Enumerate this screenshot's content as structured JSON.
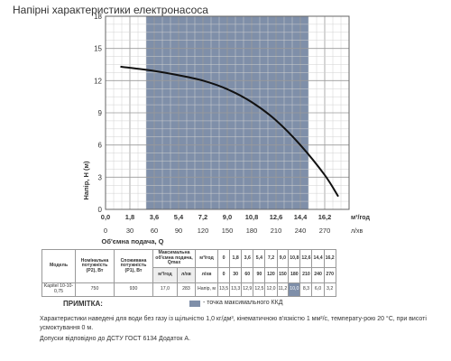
{
  "page": {
    "title": "Напірні характеристики електронасоса",
    "note_label": "ПРИМІТКА:",
    "note_text": "- точка максимального ККД",
    "footnote1": "Характеристики наведені для води без газу із щільністю 1,0 кг/дм³, кінематичною в'язкістю 1 мм²/с, температу-рою 20 °C, при висоті усмоктування 0 м.",
    "footnote2": "Допуски відповідно до ДСТУ ГОСТ 6134 Додаток А."
  },
  "chart_data": {
    "type": "line",
    "title": "",
    "ylabel": "Напір, Н (м)",
    "xlabel": "Об'ємна подача, Q",
    "x_unit_top": "м³/год",
    "x_unit_bottom": "л/хв",
    "xlim": [
      0,
      18
    ],
    "ylim": [
      0,
      18
    ],
    "x_ticks": [
      "0,0",
      "1,8",
      "3,6",
      "5,4",
      "7,2",
      "9,0",
      "10,8",
      "12,6",
      "14,4",
      "16,2"
    ],
    "x_ticks_lmin": [
      "0",
      "30",
      "60",
      "90",
      "120",
      "150",
      "180",
      "210",
      "240",
      "270"
    ],
    "y_ticks": [
      "0",
      "3",
      "6",
      "9",
      "12",
      "15",
      "18"
    ],
    "grid": true,
    "operating_range": [
      3.0,
      15.0
    ],
    "shade_color": "#7f8fa9",
    "series": [
      {
        "x": [
          1.1,
          3.6,
          5.4,
          7.2,
          9.0,
          10.8,
          12.6,
          14.4,
          16.2,
          17.2
        ],
        "y": [
          13.3,
          12.9,
          12.5,
          12.0,
          11.2,
          10.0,
          8.3,
          6.0,
          3.2,
          1.2
        ]
      }
    ]
  },
  "spec_table": {
    "headers": [
      "Модель",
      "Номінальна потужність (P2), Вт",
      "Споживана потужність (P1), Вт",
      "Максимальна об'ємна подача, Qmax"
    ],
    "qmax_units": [
      "м³/год",
      "л/хв"
    ],
    "flow_unit_m3": "м³/год",
    "flow_values": [
      "0",
      "1,8",
      "3,6",
      "5,4",
      "7,2",
      "9,0",
      "10,8",
      "12,6",
      "14,4",
      "16,2"
    ],
    "flow_unit_lmin": "л/хв",
    "flow_values_lmin": [
      "0",
      "30",
      "60",
      "90",
      "120",
      "150",
      "180",
      "210",
      "240",
      "270"
    ],
    "row": {
      "model": "Kapitel 10-10-0,75",
      "p2": "750",
      "p1": "930",
      "qmax_m3": "17,0",
      "qmax_lmin": "283",
      "head_label": "Напір, м",
      "heads": [
        "13,5",
        "13,3",
        "12,9",
        "12,5",
        "12,0",
        "11,2",
        "10,0",
        "8,3",
        "6,0",
        "3,2"
      ],
      "highlight_index": 6
    }
  }
}
